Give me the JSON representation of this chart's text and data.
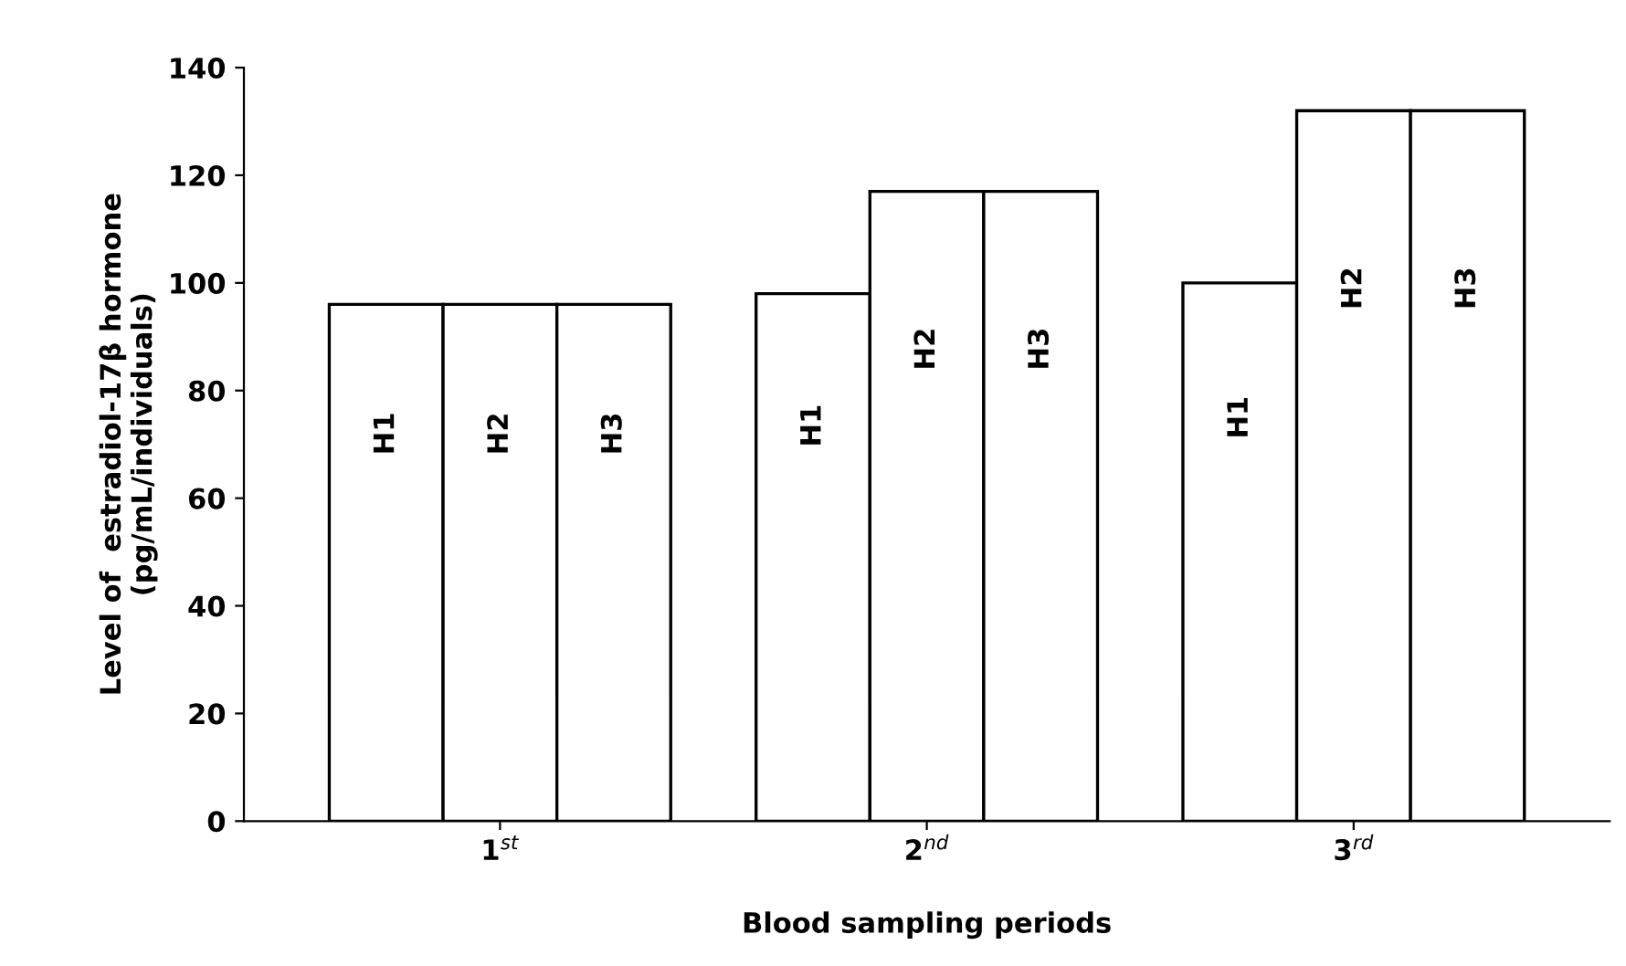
{
  "chart_data": {
    "type": "bar",
    "xlabel": "Blood sampling periods",
    "ylabel": "Level of  estradiol-17β hormone\n(pg/mL/individuals)",
    "categories": [
      "1$^{st}$",
      "2$^{nd}$",
      "3$^{rd}$"
    ],
    "series": [
      {
        "name": "H1",
        "color": "#ffffff",
        "values": [
          96,
          98,
          100
        ]
      },
      {
        "name": "H2",
        "color": "#ffffff",
        "values": [
          96,
          117,
          132
        ]
      },
      {
        "name": "H3",
        "color": "#ffffff",
        "values": [
          96,
          117,
          132
        ]
      }
    ],
    "ylim": [
      0,
      140
    ],
    "yticks": [
      0,
      20,
      40,
      60,
      80,
      100,
      120,
      140
    ],
    "grid": false,
    "legend": false
  }
}
